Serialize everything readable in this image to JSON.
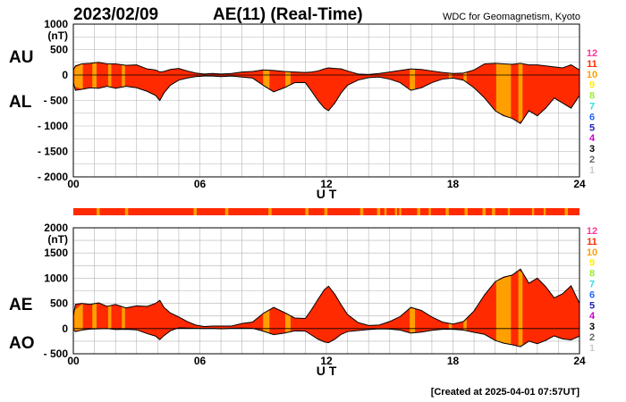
{
  "header": {
    "date": "2023/02/09",
    "title": "AE(11) (Real-Time)",
    "source": "WDC for Geomagnetism, Kyoto",
    "created": "[Created at 2025-04-01 07:57UT]"
  },
  "colors": {
    "fill_main": "#ff2a00",
    "fill_partial": "#ffa000",
    "line": "#000000",
    "grid": "#b4b4b4"
  },
  "station_scale": [
    {
      "label": "12",
      "color": "#ff3399"
    },
    {
      "label": "11",
      "color": "#ff2a00"
    },
    {
      "label": "10",
      "color": "#ffa000"
    },
    {
      "label": "9",
      "color": "#ffee00"
    },
    {
      "label": "8",
      "color": "#99ee33"
    },
    {
      "label": "7",
      "color": "#33dddd"
    },
    {
      "label": "6",
      "color": "#2266ff"
    },
    {
      "label": "5",
      "color": "#2222bb"
    },
    {
      "label": "4",
      "color": "#cc00cc"
    },
    {
      "label": "3",
      "color": "#000000"
    },
    {
      "label": "2",
      "color": "#666666"
    },
    {
      "label": "1",
      "color": "#cccccc"
    }
  ],
  "chart_data": [
    {
      "type": "area",
      "ylabel": "(nT)",
      "xlabel": "U T",
      "series_labels": [
        "AU",
        "AL"
      ],
      "xlim": [
        0,
        24
      ],
      "ylim": [
        -2000,
        1000
      ],
      "x_ticks": [
        "00",
        "06",
        "12",
        "18",
        "24"
      ],
      "y_ticks": [
        "1000",
        "500",
        "0",
        "- 500",
        "- 1000",
        "- 1500",
        "- 2000"
      ],
      "y_tick_values": [
        1000,
        500,
        0,
        -500,
        -1000,
        -1500,
        -2000
      ],
      "x": [
        0,
        0.1,
        0.4,
        0.8,
        1.2,
        1.6,
        2.0,
        2.5,
        3.0,
        3.5,
        3.9,
        4.1,
        4.3,
        4.6,
        5.0,
        5.4,
        5.8,
        6.2,
        6.6,
        7.0,
        7.5,
        8.0,
        8.5,
        9.0,
        9.5,
        10.0,
        10.5,
        11.0,
        11.3,
        11.6,
        11.9,
        12.1,
        12.4,
        12.7,
        13.0,
        13.5,
        14.0,
        14.5,
        15.0,
        15.5,
        16.0,
        16.5,
        17.0,
        17.5,
        18.0,
        18.5,
        19.0,
        19.5,
        20.0,
        20.4,
        20.8,
        21.2,
        21.6,
        22.0,
        22.4,
        22.8,
        23.2,
        23.6,
        24.0
      ],
      "au": [
        100,
        180,
        220,
        230,
        250,
        220,
        220,
        190,
        200,
        120,
        100,
        60,
        70,
        110,
        130,
        80,
        40,
        20,
        30,
        20,
        30,
        60,
        70,
        100,
        90,
        70,
        60,
        50,
        60,
        80,
        120,
        140,
        130,
        120,
        80,
        20,
        10,
        30,
        60,
        90,
        120,
        110,
        80,
        50,
        30,
        40,
        100,
        220,
        230,
        220,
        210,
        230,
        200,
        200,
        180,
        160,
        140,
        200,
        100
      ],
      "al": [
        -150,
        -300,
        -280,
        -250,
        -260,
        -220,
        -260,
        -220,
        -250,
        -320,
        -400,
        -500,
        -350,
        -200,
        -100,
        -60,
        -30,
        -20,
        -20,
        -30,
        -20,
        -40,
        -60,
        -200,
        -330,
        -250,
        -150,
        -150,
        -320,
        -500,
        -650,
        -700,
        -550,
        -350,
        -200,
        -100,
        -50,
        -40,
        -80,
        -150,
        -300,
        -250,
        -150,
        -80,
        -60,
        -100,
        -250,
        -450,
        -700,
        -800,
        -850,
        -950,
        -700,
        -800,
        -650,
        -450,
        -550,
        -650,
        -400
      ],
      "partial_segments": [
        [
          0.05,
          0.45
        ],
        [
          0.9,
          1.1
        ],
        [
          1.65,
          1.8
        ],
        [
          2.3,
          2.45
        ],
        [
          9.0,
          9.3
        ],
        [
          10.05,
          10.3
        ],
        [
          15.95,
          16.2
        ],
        [
          17.8,
          17.95
        ],
        [
          18.5,
          18.65
        ],
        [
          20.05,
          20.75
        ],
        [
          21.1,
          21.3
        ]
      ]
    },
    {
      "type": "area",
      "ylabel": "(nT)",
      "xlabel": "U T",
      "series_labels": [
        "AE",
        "AO"
      ],
      "xlim": [
        0,
        24
      ],
      "ylim": [
        -500,
        2000
      ],
      "x_ticks": [
        "00",
        "06",
        "12",
        "18",
        "24"
      ],
      "y_ticks": [
        "2000",
        "1500",
        "1000",
        "500",
        "0",
        "- 500"
      ],
      "y_tick_values": [
        2000,
        1500,
        1000,
        500,
        0,
        -500
      ],
      "x": [
        0,
        0.1,
        0.4,
        0.8,
        1.2,
        1.6,
        2.0,
        2.5,
        3.0,
        3.5,
        3.9,
        4.1,
        4.3,
        4.6,
        5.0,
        5.4,
        5.8,
        6.2,
        6.6,
        7.0,
        7.5,
        8.0,
        8.5,
        9.0,
        9.5,
        10.0,
        10.5,
        11.0,
        11.3,
        11.6,
        11.9,
        12.1,
        12.4,
        12.7,
        13.0,
        13.5,
        14.0,
        14.5,
        15.0,
        15.5,
        16.0,
        16.5,
        17.0,
        17.5,
        18.0,
        18.5,
        19.0,
        19.5,
        20.0,
        20.4,
        20.8,
        21.2,
        21.6,
        22.0,
        22.4,
        22.8,
        23.2,
        23.6,
        24.0
      ],
      "ae": [
        250,
        480,
        500,
        480,
        510,
        440,
        480,
        410,
        450,
        440,
        500,
        560,
        420,
        310,
        230,
        140,
        70,
        40,
        50,
        50,
        50,
        100,
        130,
        300,
        420,
        320,
        210,
        200,
        380,
        580,
        770,
        840,
        680,
        470,
        280,
        120,
        60,
        70,
        140,
        240,
        420,
        360,
        230,
        130,
        90,
        140,
        350,
        670,
        930,
        1020,
        1060,
        1180,
        900,
        1000,
        830,
        610,
        690,
        850,
        500
      ],
      "ao": [
        -20,
        -60,
        -30,
        -10,
        -5,
        0,
        -20,
        -15,
        -25,
        -100,
        -150,
        -220,
        -140,
        -45,
        15,
        10,
        5,
        0,
        5,
        -5,
        5,
        10,
        5,
        -50,
        -120,
        -90,
        -45,
        -50,
        -130,
        -210,
        -265,
        -280,
        -210,
        -115,
        -60,
        -40,
        -20,
        -5,
        -10,
        -30,
        -90,
        -70,
        -35,
        -15,
        -15,
        -30,
        -75,
        -115,
        -235,
        -290,
        -320,
        -360,
        -250,
        -300,
        -235,
        -145,
        -205,
        -225,
        -150
      ],
      "partial_segments": [
        [
          0.05,
          0.45
        ],
        [
          0.9,
          1.1
        ],
        [
          1.65,
          1.8
        ],
        [
          2.3,
          2.45
        ],
        [
          9.0,
          9.3
        ],
        [
          10.05,
          10.3
        ],
        [
          15.95,
          16.2
        ],
        [
          17.8,
          17.95
        ],
        [
          18.5,
          18.65
        ],
        [
          20.05,
          20.75
        ],
        [
          21.1,
          21.3
        ]
      ]
    }
  ],
  "status_bar": {
    "segments": [
      [
        1.1,
        1.25
      ],
      [
        2.45,
        2.6
      ],
      [
        5.7,
        5.85
      ],
      [
        7.2,
        7.35
      ],
      [
        9.25,
        9.4
      ],
      [
        11.0,
        11.15
      ],
      [
        11.9,
        12.05
      ],
      [
        13.6,
        13.75
      ],
      [
        14.4,
        14.55
      ],
      [
        14.75,
        14.85
      ],
      [
        15.25,
        15.35
      ],
      [
        15.45,
        15.55
      ],
      [
        16.3,
        16.45
      ],
      [
        16.85,
        16.95
      ],
      [
        17.65,
        17.8
      ],
      [
        18.55,
        18.7
      ],
      [
        19.4,
        19.55
      ],
      [
        19.85,
        20.0
      ],
      [
        20.6,
        20.7
      ],
      [
        21.75,
        21.85
      ],
      [
        22.3,
        22.4
      ],
      [
        23.3,
        23.45
      ]
    ]
  }
}
